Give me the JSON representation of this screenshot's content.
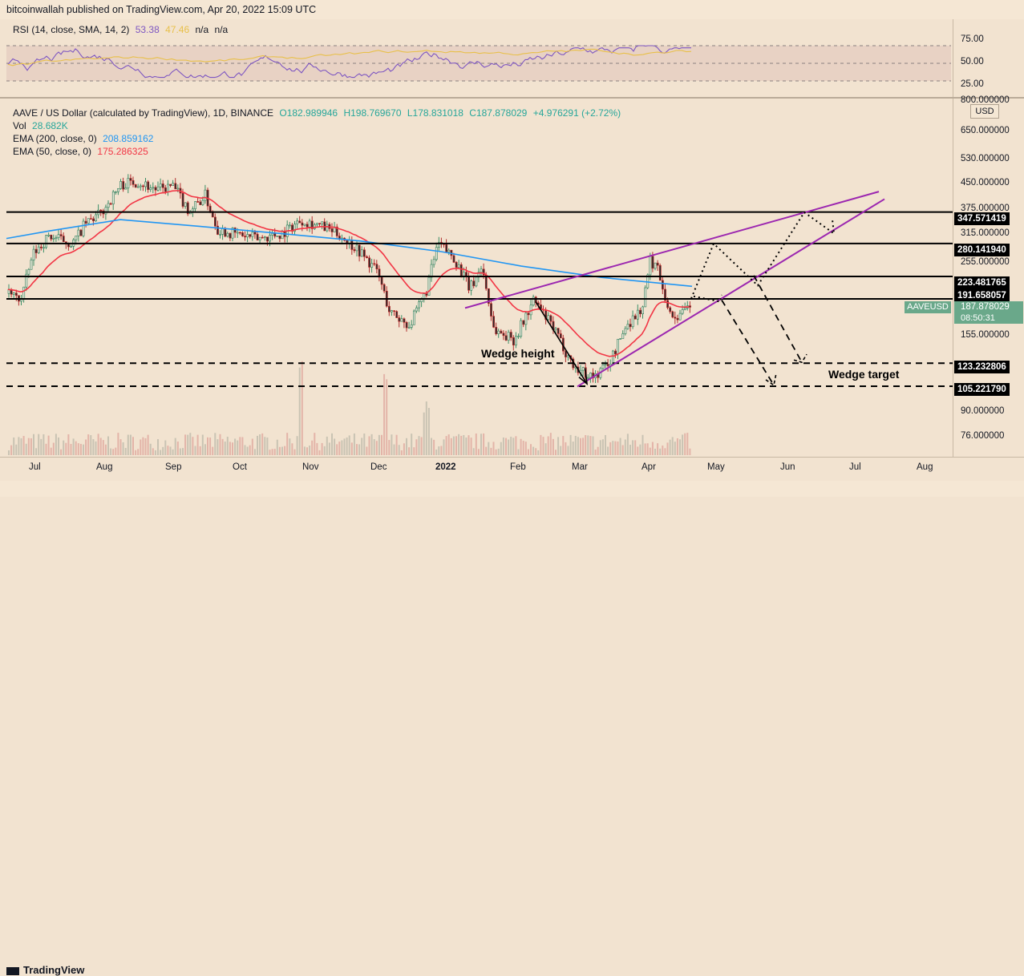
{
  "header": {
    "published_text": "bitcoinwallah published on TradingView.com, Apr 20, 2022 15:09 UTC"
  },
  "rsi": {
    "legend_name": "RSI (14, close, SMA, 14, 2)",
    "value": "53.38",
    "sma_value": "47.46",
    "na1": "n/a",
    "na2": "n/a",
    "ticks": [
      "75.00",
      "50.00",
      "25.00"
    ]
  },
  "main_legend": {
    "symbol_line": "AAVE / US Dollar (calculated by TradingView), 1D, BINANCE",
    "o": "O182.989946",
    "h": "H198.769670",
    "l": "L178.831018",
    "c": "C187.878029",
    "change": "+4.976291 (+2.72%)",
    "vol_label": "Vol",
    "vol_value": "28.682K",
    "ema200_label": "EMA (200, close, 0)",
    "ema200_value": "208.859162",
    "ema50_label": "EMA (50, close, 0)",
    "ema50_value": "175.286325"
  },
  "currency": "USD",
  "price_axis_ticks": [
    "800.000000",
    "650.000000",
    "530.000000",
    "450.000000",
    "375.000000",
    "315.000000",
    "255.000000",
    "155.000000",
    "90.000000",
    "76.000000"
  ],
  "level_tags": [
    "347.571419",
    "280.141940",
    "223.481765",
    "191.658057",
    "123.232806",
    "105.221790"
  ],
  "current_price": {
    "symbol": "AAVEUSD",
    "price": "187.878029",
    "countdown": "08:50:31"
  },
  "time_axis": [
    "Jul",
    "Aug",
    "Sep",
    "Oct",
    "Nov",
    "Dec",
    "2022",
    "Feb",
    "Mar",
    "Apr",
    "May",
    "Jun",
    "Jul",
    "Aug"
  ],
  "annotations": {
    "wedge_height": "Wedge height",
    "wedge_target": "Wedge target"
  },
  "footer": {
    "brand": "TradingView"
  },
  "colors": {
    "ema200": "#2196f3",
    "ema50": "#f23645",
    "rsi": "#7e57c2",
    "rsi_sma": "#e8c04a",
    "wedge": "#9c27b0",
    "up": "#26a69a",
    "down": "#ef5350"
  },
  "chart_data": {
    "type": "candlestick",
    "symbol": "AAVE / US Dollar",
    "interval": "1D",
    "horizontal_levels": [
      347.571419,
      280.14194,
      223.481765,
      191.658057,
      123.232806,
      105.22179
    ],
    "ema200_last": 208.859162,
    "ema50_last": 175.286325,
    "rsi_last": 53.38,
    "rsi_sma_last": 47.46,
    "close_series": [
      {
        "m": "Jun",
        "v": 200
      },
      {
        "m": "Jul",
        "v": 240
      },
      {
        "m": "Jul",
        "v": 300
      },
      {
        "m": "Aug",
        "v": 360
      },
      {
        "m": "Aug",
        "v": 400
      },
      {
        "m": "Sep",
        "v": 380
      },
      {
        "m": "Sep",
        "v": 340
      },
      {
        "m": "Oct",
        "v": 310
      },
      {
        "m": "Oct",
        "v": 330
      },
      {
        "m": "Nov",
        "v": 345
      },
      {
        "m": "Nov",
        "v": 300
      },
      {
        "m": "Dec",
        "v": 220
      },
      {
        "m": "Dec",
        "v": 180
      },
      {
        "m": "Jan",
        "v": 270
      },
      {
        "m": "Jan",
        "v": 230
      },
      {
        "m": "Jan",
        "v": 150
      },
      {
        "m": "Feb",
        "v": 175
      },
      {
        "m": "Feb",
        "v": 130
      },
      {
        "m": "Mar",
        "v": 115
      },
      {
        "m": "Mar",
        "v": 170
      },
      {
        "m": "Apr",
        "v": 255
      },
      {
        "m": "Apr",
        "v": 175
      },
      {
        "m": "Apr",
        "v": 188
      }
    ]
  }
}
